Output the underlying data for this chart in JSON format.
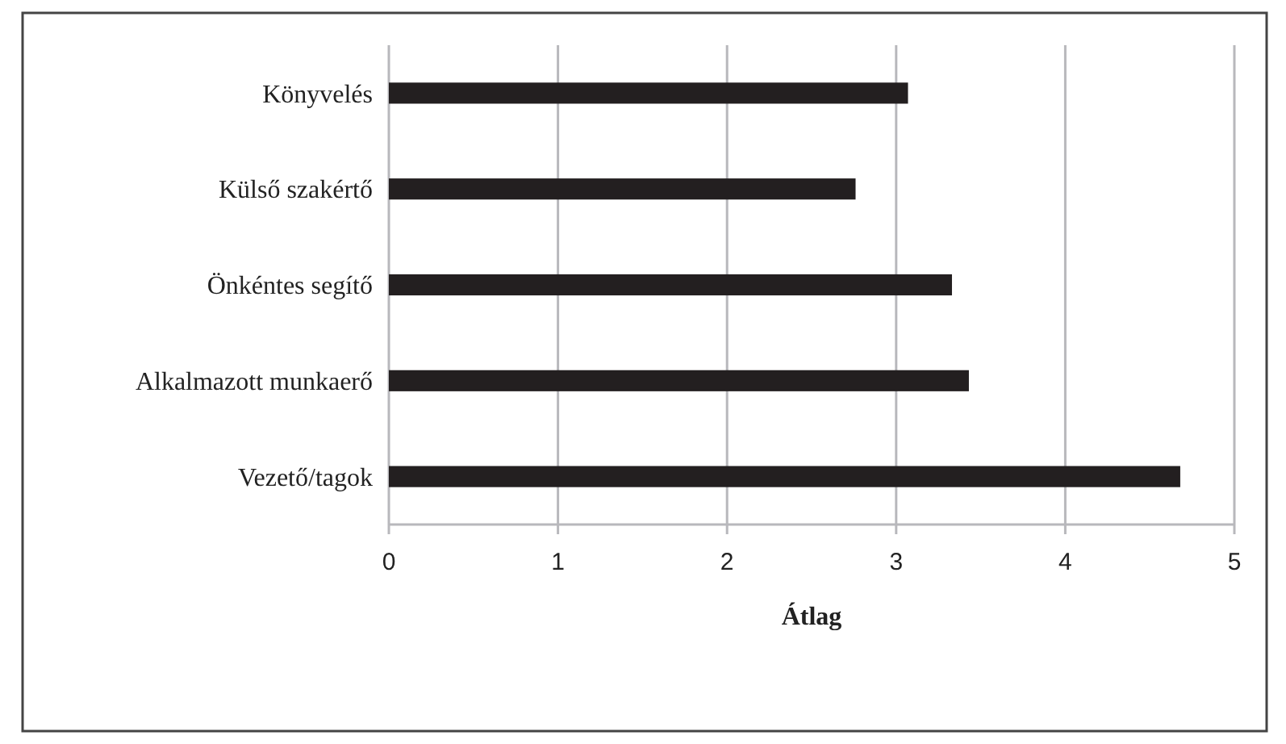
{
  "chart_data": {
    "type": "bar",
    "orientation": "horizontal",
    "xlabel": "Átlag",
    "categories": [
      "Könyvelés",
      "Külső szakértő",
      "Önkéntes segítő",
      "Alkalmazott munkaerő",
      "Vezető/tagok"
    ],
    "values": [
      3.07,
      2.76,
      3.33,
      3.43,
      4.68
    ],
    "color": "#231f20",
    "xlim": [
      0,
      5
    ],
    "xticks": [
      0,
      1,
      2,
      3,
      4,
      5
    ],
    "grid": "x"
  }
}
